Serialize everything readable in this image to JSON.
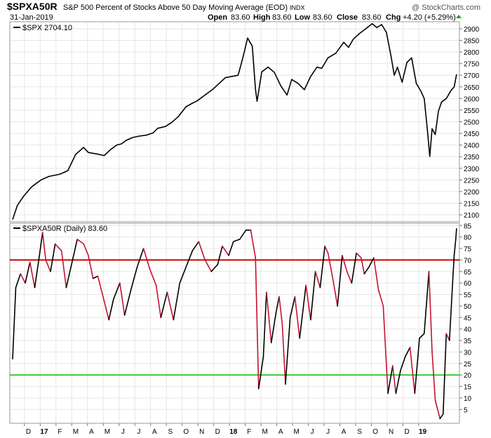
{
  "header": {
    "symbol": "$SPXA50R",
    "description": "S&P 500 Percent of Stocks Above 50 Day Moving Average (EOD)",
    "exchange": "INDX",
    "brand": "@ StockCharts.com",
    "date": "31-Jan-2019",
    "open_label": "Open",
    "open": "83.60",
    "high_label": "High",
    "high": "83.60",
    "low_label": "Low",
    "low": "83.60",
    "close_label": "Close",
    "close": "83.60",
    "chg_label": "Chg",
    "chg": "+4.20 (+5.29%)"
  },
  "colors": {
    "price_line": "#000000",
    "breadth_up": "#000000",
    "breadth_down": "#c8102e",
    "line_70": "#cc0000",
    "line_20": "#33cc33",
    "grid": "#e6e6e6"
  },
  "chart_data": [
    {
      "type": "line",
      "legend": "$SPX 2704.10",
      "ylim": [
        2070,
        2930
      ],
      "y_ticks": [
        2100,
        2150,
        2200,
        2250,
        2300,
        2350,
        2400,
        2450,
        2500,
        2550,
        2600,
        2650,
        2700,
        2750,
        2800,
        2850,
        2900
      ],
      "x_range": [
        0,
        27
      ],
      "points": [
        [
          0,
          2080
        ],
        [
          0.3,
          2140
        ],
        [
          0.7,
          2180
        ],
        [
          1.2,
          2220
        ],
        [
          1.8,
          2250
        ],
        [
          2.3,
          2265
        ],
        [
          3,
          2275
        ],
        [
          3.5,
          2290
        ],
        [
          4,
          2360
        ],
        [
          4.5,
          2390
        ],
        [
          4.8,
          2368
        ],
        [
          5.3,
          2362
        ],
        [
          5.8,
          2355
        ],
        [
          6.2,
          2380
        ],
        [
          6.6,
          2400
        ],
        [
          6.9,
          2405
        ],
        [
          7.2,
          2420
        ],
        [
          7.6,
          2432
        ],
        [
          8,
          2438
        ],
        [
          8.5,
          2443
        ],
        [
          8.9,
          2452
        ],
        [
          9.2,
          2472
        ],
        [
          9.7,
          2480
        ],
        [
          10.1,
          2498
        ],
        [
          10.5,
          2522
        ],
        [
          11,
          2565
        ],
        [
          11.4,
          2580
        ],
        [
          11.7,
          2590
        ],
        [
          12.2,
          2615
        ],
        [
          12.7,
          2640
        ],
        [
          13.1,
          2665
        ],
        [
          13.5,
          2690
        ],
        [
          13.9,
          2695
        ],
        [
          14.3,
          2700
        ],
        [
          14.6,
          2775
        ],
        [
          14.9,
          2860
        ],
        [
          15.2,
          2825
        ],
        [
          15.4,
          2640
        ],
        [
          15.5,
          2588
        ],
        [
          15.8,
          2715
        ],
        [
          16.2,
          2735
        ],
        [
          16.6,
          2712
        ],
        [
          17,
          2655
        ],
        [
          17.4,
          2615
        ],
        [
          17.7,
          2682
        ],
        [
          18.1,
          2665
        ],
        [
          18.5,
          2638
        ],
        [
          18.9,
          2695
        ],
        [
          19.3,
          2735
        ],
        [
          19.6,
          2730
        ],
        [
          20,
          2775
        ],
        [
          20.5,
          2795
        ],
        [
          21,
          2842
        ],
        [
          21.3,
          2820
        ],
        [
          21.6,
          2855
        ],
        [
          22,
          2880
        ],
        [
          22.4,
          2900
        ],
        [
          22.8,
          2922
        ],
        [
          23.1,
          2905
        ],
        [
          23.4,
          2918
        ],
        [
          23.7,
          2885
        ],
        [
          24,
          2780
        ],
        [
          24.2,
          2700
        ],
        [
          24.4,
          2735
        ],
        [
          24.7,
          2670
        ],
        [
          25,
          2755
        ],
        [
          25.3,
          2775
        ],
        [
          25.6,
          2665
        ],
        [
          25.9,
          2630
        ],
        [
          26.1,
          2600
        ],
        [
          26.3,
          2465
        ],
        [
          26.45,
          2351
        ],
        [
          26.6,
          2470
        ],
        [
          26.8,
          2445
        ],
        [
          27,
          2545
        ],
        [
          27.2,
          2585
        ],
        [
          27.5,
          2600
        ],
        [
          27.8,
          2635
        ],
        [
          28,
          2650
        ],
        [
          28.15,
          2704
        ]
      ]
    },
    {
      "type": "line",
      "legend": "$SPXA50R (Daily) 83.60",
      "ylim": [
        -1,
        86
      ],
      "y_ticks": [
        5,
        10,
        15,
        20,
        25,
        30,
        35,
        40,
        45,
        50,
        55,
        60,
        65,
        70,
        75,
        80,
        85
      ],
      "reference_lines": [
        70,
        20
      ],
      "x_labels": [
        "D",
        "17",
        "F",
        "M",
        "A",
        "M",
        "J",
        "J",
        "A",
        "S",
        "O",
        "N",
        "D",
        "18",
        "F",
        "M",
        "A",
        "M",
        "J",
        "J",
        "A",
        "S",
        "O",
        "N",
        "D",
        "19"
      ],
      "x_bold_labels": [
        "17",
        "18",
        "19"
      ],
      "points": [
        [
          0,
          27
        ],
        [
          0.2,
          58
        ],
        [
          0.5,
          64
        ],
        [
          0.8,
          60
        ],
        [
          1.1,
          69
        ],
        [
          1.4,
          58
        ],
        [
          1.7,
          72
        ],
        [
          1.9,
          82
        ],
        [
          2.1,
          70
        ],
        [
          2.4,
          65
        ],
        [
          2.7,
          77
        ],
        [
          3.1,
          74
        ],
        [
          3.4,
          58
        ],
        [
          3.8,
          70
        ],
        [
          4.1,
          79
        ],
        [
          4.5,
          77
        ],
        [
          4.8,
          72
        ],
        [
          5.1,
          62
        ],
        [
          5.4,
          63
        ],
        [
          5.7,
          55
        ],
        [
          6.1,
          44
        ],
        [
          6.4,
          53
        ],
        [
          6.8,
          60
        ],
        [
          7.1,
          46
        ],
        [
          7.5,
          57
        ],
        [
          7.9,
          67
        ],
        [
          8.3,
          75
        ],
        [
          8.7,
          66
        ],
        [
          9.1,
          59
        ],
        [
          9.4,
          45
        ],
        [
          9.8,
          56
        ],
        [
          10.2,
          44
        ],
        [
          10.6,
          60
        ],
        [
          11,
          67
        ],
        [
          11.4,
          74
        ],
        [
          11.8,
          78
        ],
        [
          12.2,
          70
        ],
        [
          12.6,
          65
        ],
        [
          13,
          68
        ],
        [
          13.3,
          76
        ],
        [
          13.7,
          72
        ],
        [
          14,
          78
        ],
        [
          14.4,
          79
        ],
        [
          14.8,
          83
        ],
        [
          15.1,
          83
        ],
        [
          15.4,
          71
        ],
        [
          15.6,
          14
        ],
        [
          15.9,
          28
        ],
        [
          16.1,
          56
        ],
        [
          16.4,
          34
        ],
        [
          16.7,
          47
        ],
        [
          16.9,
          54
        ],
        [
          17.1,
          42
        ],
        [
          17.3,
          16
        ],
        [
          17.6,
          45
        ],
        [
          17.9,
          54
        ],
        [
          18.2,
          36
        ],
        [
          18.6,
          59
        ],
        [
          18.9,
          44
        ],
        [
          19.2,
          65
        ],
        [
          19.5,
          58
        ],
        [
          19.8,
          76
        ],
        [
          20,
          73
        ],
        [
          20.3,
          62
        ],
        [
          20.6,
          50
        ],
        [
          20.9,
          72
        ],
        [
          21.2,
          65
        ],
        [
          21.5,
          60
        ],
        [
          21.8,
          73
        ],
        [
          22.1,
          71
        ],
        [
          22.3,
          64
        ],
        [
          22.6,
          67
        ],
        [
          22.9,
          71
        ],
        [
          23.2,
          57
        ],
        [
          23.5,
          50
        ],
        [
          23.8,
          12
        ],
        [
          24.1,
          24
        ],
        [
          24.3,
          12
        ],
        [
          24.6,
          22
        ],
        [
          24.9,
          28
        ],
        [
          25.2,
          32
        ],
        [
          25.5,
          12
        ],
        [
          25.8,
          36
        ],
        [
          26.1,
          38
        ],
        [
          26.4,
          65
        ],
        [
          26.6,
          30
        ],
        [
          26.8,
          9
        ],
        [
          27.1,
          1
        ],
        [
          27.3,
          3
        ],
        [
          27.5,
          38
        ],
        [
          27.7,
          35
        ],
        [
          27.9,
          60
        ],
        [
          28,
          72
        ],
        [
          28.1,
          79
        ],
        [
          28.15,
          83.6
        ]
      ]
    }
  ]
}
